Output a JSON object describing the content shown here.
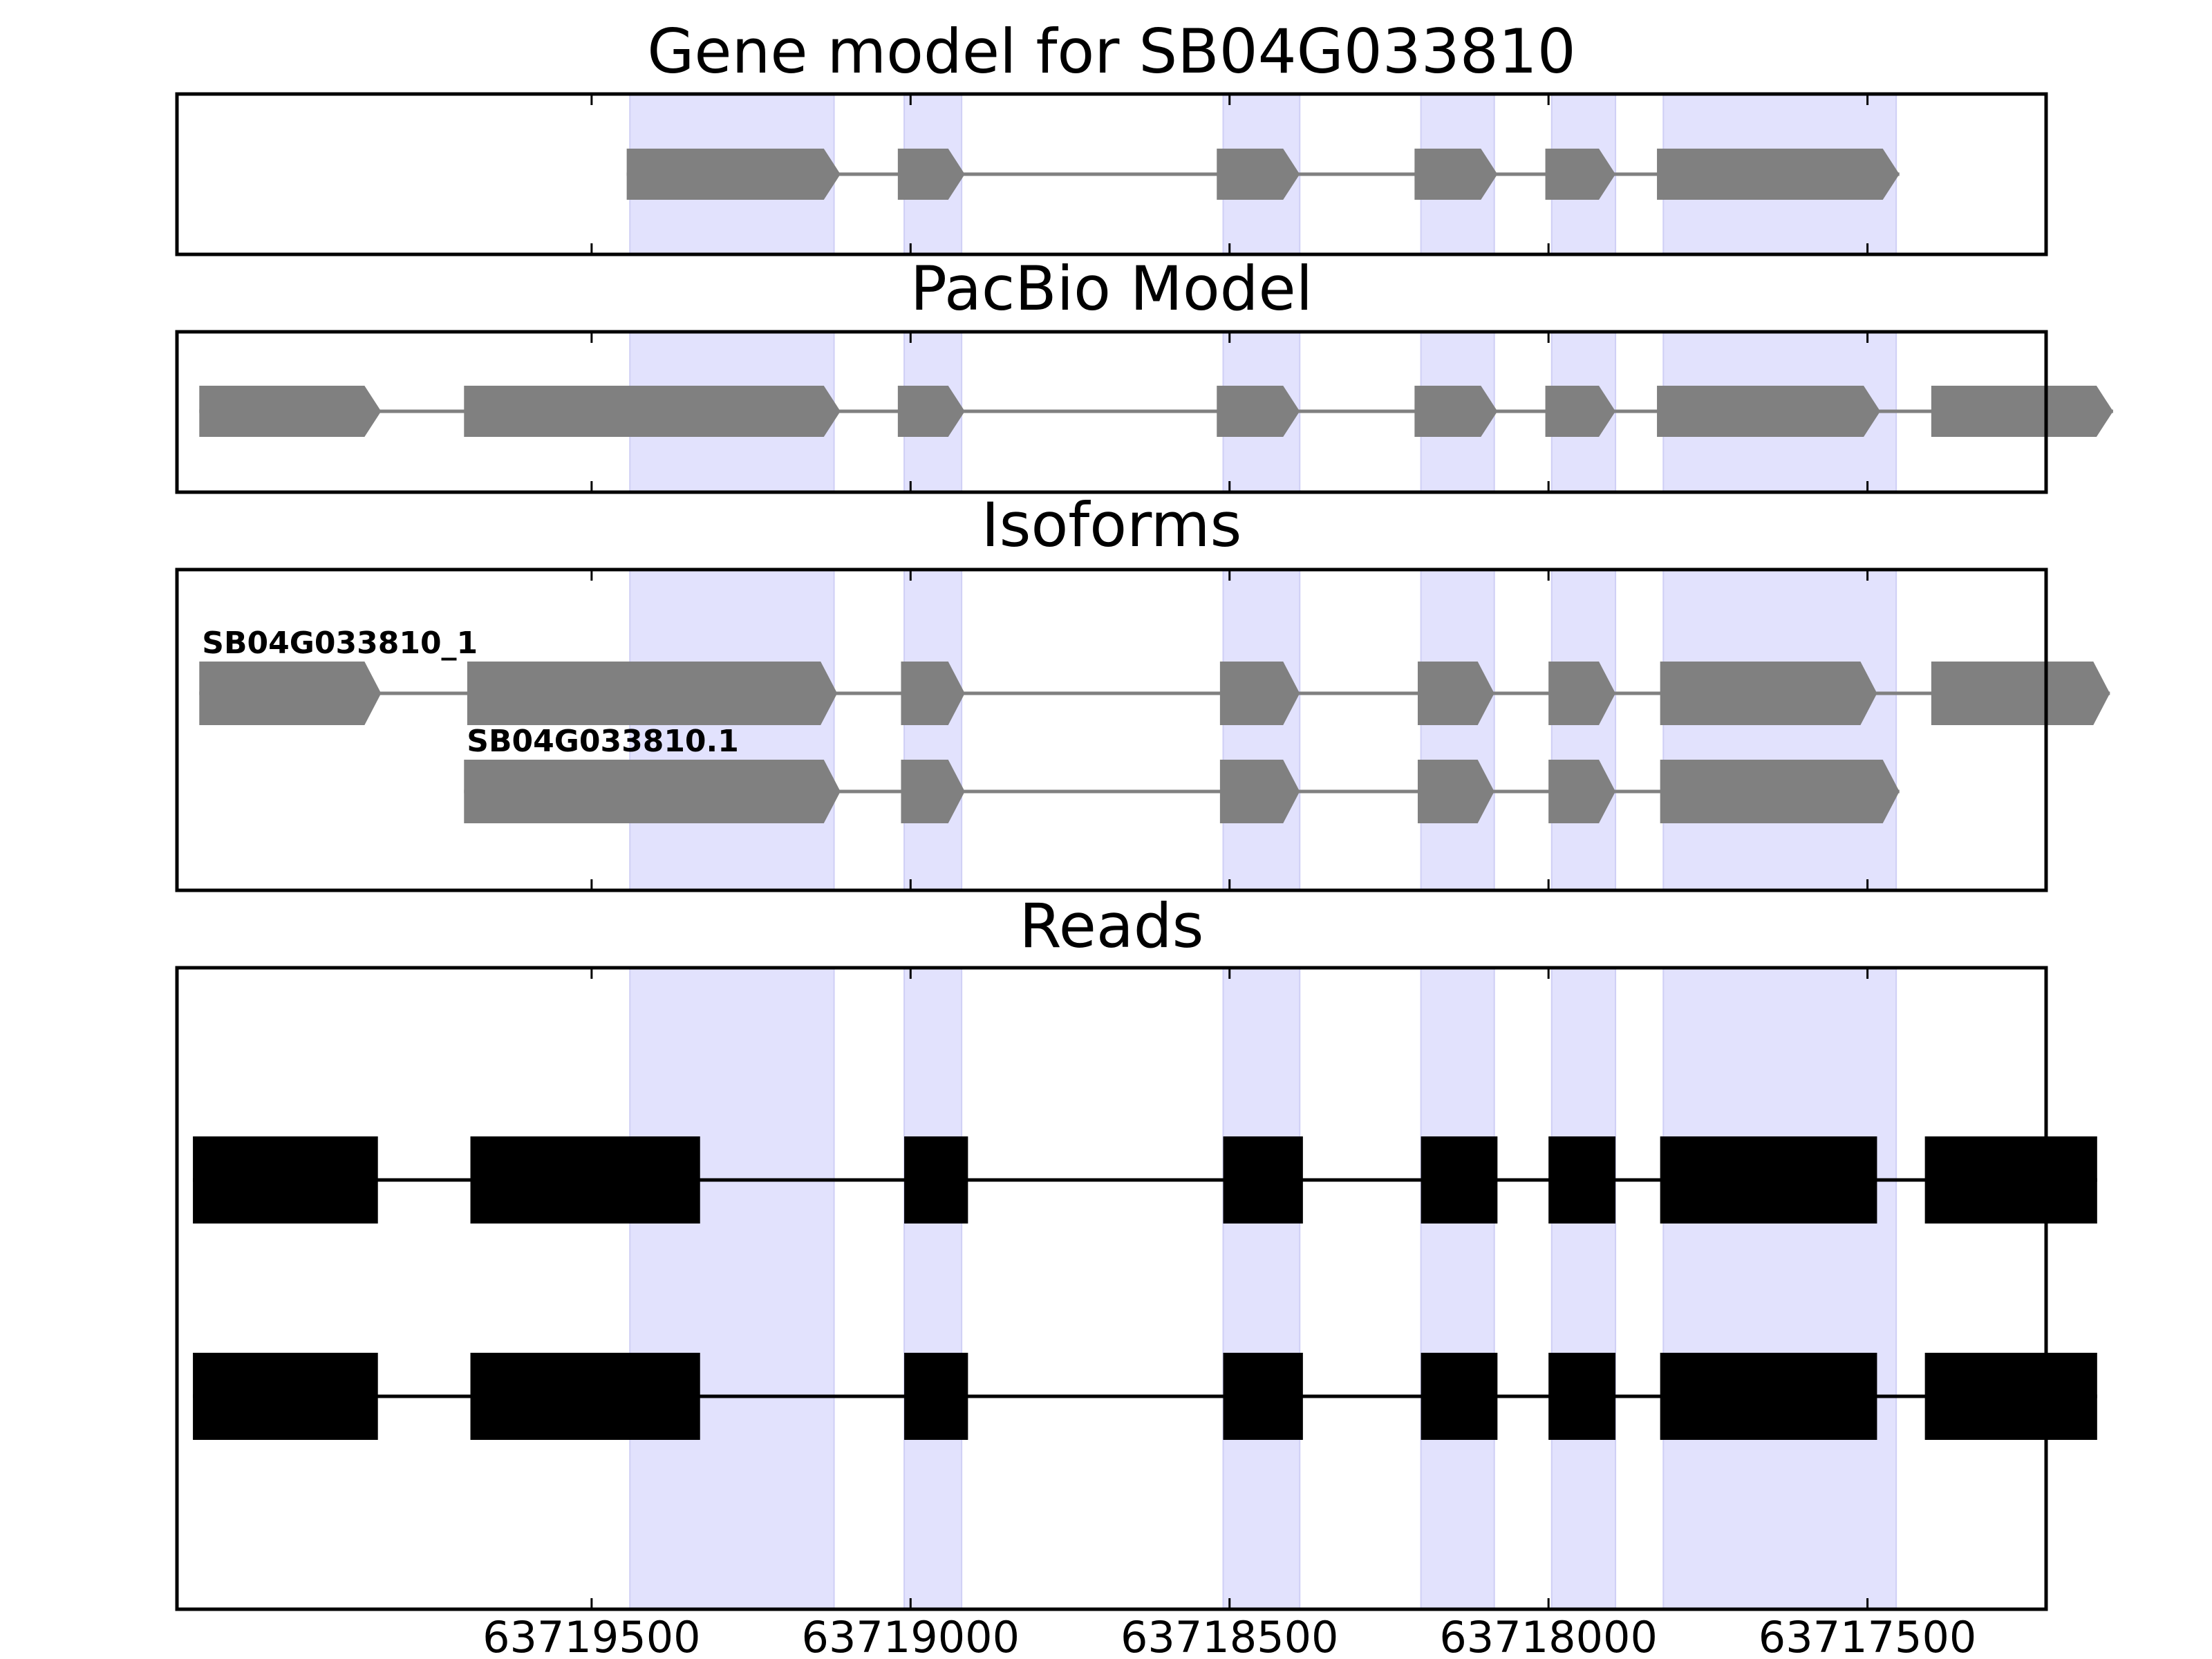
{
  "chart_data": {
    "type": "gene-track",
    "x_axis": {
      "direction": "descending",
      "range": [
        63720150,
        63717220
      ],
      "ticks": [
        63719500,
        63719000,
        63718500,
        63718000,
        63717500
      ],
      "tick_labels": [
        "63719500",
        "63719000",
        "63718500",
        "63718000",
        "63717500"
      ]
    },
    "highlight_color": "#e2e2fd",
    "highlight_exons": [
      [
        63719440,
        63719120
      ],
      [
        63719010,
        63718920
      ],
      [
        63718510,
        63718390
      ],
      [
        63718200,
        63718085
      ],
      [
        63717995,
        63717895
      ],
      [
        63717820,
        63717455
      ]
    ],
    "panels": [
      {
        "id": "gene-model",
        "title": "Gene model for SB04G033810",
        "style": "arrow",
        "color": "#808080",
        "tracks": [
          {
            "label": "",
            "exons": [
              [
                63719445,
                63719110
              ],
              [
                63719020,
                63718915
              ],
              [
                63718520,
                63718390
              ],
              [
                63718210,
                63718080
              ],
              [
                63718005,
                63717895
              ],
              [
                63717830,
                63717450
              ]
            ]
          }
        ]
      },
      {
        "id": "pacbio-model",
        "title": "PacBio Model",
        "style": "arrow",
        "color": "#808080",
        "tracks": [
          {
            "label": "",
            "exons": [
              [
                63720115,
                63719830
              ],
              [
                63719700,
                63719110
              ],
              [
                63719020,
                63718915
              ],
              [
                63718520,
                63718390
              ],
              [
                63718210,
                63718080
              ],
              [
                63718005,
                63717895
              ],
              [
                63717830,
                63717480
              ],
              [
                63717400,
                63717115
              ]
            ]
          }
        ]
      },
      {
        "id": "isoforms",
        "title": "Isoforms",
        "style": "arrow",
        "color": "#808080",
        "tracks": [
          {
            "label": "SB04G033810_1",
            "exons": [
              [
                63720115,
                63719830
              ],
              [
                63719695,
                63719115
              ],
              [
                63719015,
                63718915
              ],
              [
                63718515,
                63718390
              ],
              [
                63718205,
                63718085
              ],
              [
                63718000,
                63717895
              ],
              [
                63717825,
                63717485
              ],
              [
                63717400,
                63717120
              ]
            ]
          },
          {
            "label": "SB04G033810.1",
            "exons": [
              [
                63719700,
                63719110
              ],
              [
                63719015,
                63718915
              ],
              [
                63718515,
                63718390
              ],
              [
                63718205,
                63718085
              ],
              [
                63718000,
                63717895
              ],
              [
                63717825,
                63717450
              ]
            ]
          }
        ]
      },
      {
        "id": "reads",
        "title": "Reads",
        "style": "block",
        "color": "#000000",
        "tracks": [
          {
            "label": "",
            "exons": [
              [
                63720125,
                63719835
              ],
              [
                63719690,
                63719330
              ],
              [
                63719010,
                63718910
              ],
              [
                63718510,
                63718385
              ],
              [
                63718200,
                63718080
              ],
              [
                63718000,
                63717895
              ],
              [
                63717825,
                63717485
              ],
              [
                63717410,
                63717140
              ]
            ]
          },
          {
            "label": "",
            "exons": [
              [
                63720125,
                63719835
              ],
              [
                63719690,
                63719330
              ],
              [
                63719010,
                63718910
              ],
              [
                63718510,
                63718385
              ],
              [
                63718200,
                63718080
              ],
              [
                63718000,
                63717895
              ],
              [
                63717825,
                63717485
              ],
              [
                63717410,
                63717140
              ]
            ]
          }
        ]
      }
    ]
  }
}
